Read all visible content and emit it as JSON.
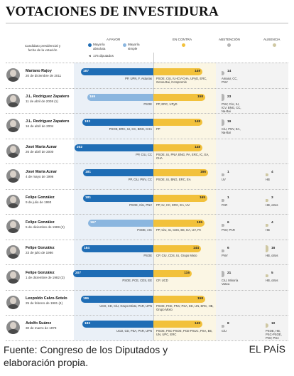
{
  "title": "VOTACIONES DE INVESTIDURA",
  "headers": {
    "candidate": "Candidato presidencial y fecha de la votación",
    "favor": "A FAVOR",
    "contra": "EN CONTRA",
    "abstencion": "ABSTENCIÓN",
    "ausencia": "AUSENCIA"
  },
  "legend": {
    "absolute": "Mayoría absoluta",
    "simple": "Mayoría simple",
    "threshold": "176 diputados"
  },
  "colors": {
    "favor_absolute": "#1f6db5",
    "favor_simple": "#8bb6df",
    "contra": "#f2c13b",
    "abstencion": "#b5b5b5",
    "ausencia": "#cfc8a3"
  },
  "chart_data": {
    "type": "bar",
    "title": "VOTACIONES DE INVESTIDURA",
    "series": [
      {
        "name": "A favor",
        "values": [
          187,
          169,
          183,
          202,
          181,
          181,
          167,
          184,
          207,
          186,
          183
        ]
      },
      {
        "name": "En contra",
        "values": [
          149,
          158,
          148,
          148,
          166,
          165,
          155,
          144,
          116,
          158,
          149
        ]
      },
      {
        "name": "Abstención",
        "values": [
          14,
          23,
          19,
          null,
          1,
          1,
          6,
          6,
          21,
          null,
          8
        ]
      },
      {
        "name": "Ausencia",
        "values": [
          null,
          null,
          null,
          null,
          4,
          3,
          4,
          16,
          5,
          null,
          10
        ]
      }
    ],
    "rows": [
      {
        "name": "Mariano Rajoy",
        "date": "20 de diciembre de 2011",
        "favor": 187,
        "majority": "absoluta",
        "favor_parties": "PP, UPN, F. Asturias",
        "contra": 149,
        "contra_parties": "PSOE, CiU, IU-ICV-CHA, UPyD, ERC, Geroa Bai, Compromís",
        "abst": "14",
        "abst_parties": "Amaiur, CC, PNV",
        "aus": "",
        "aus_parties": ""
      },
      {
        "name": "J.L. Rodríguez Zapatero",
        "date": "11 de abril de 2008 (1)",
        "favor": 169,
        "majority": "simple",
        "favor_parties": "PSOE",
        "contra": 158,
        "contra_parties": "PP, ERC, UPyD",
        "abst": "23",
        "abst_parties": "PNV, CiU, IU, ICV, BNG, CC, Na-Bai",
        "aus": "",
        "aus_parties": ""
      },
      {
        "name": "J.L. Rodríguez Zapatero",
        "date": "16 de abril de 2004",
        "favor": 183,
        "majority": "absoluta",
        "favor_parties": "PSOE, ERC, IU, CC, BNG, CHA",
        "contra": 148,
        "contra_parties": "PP",
        "abst": "19",
        "abst_parties": "CiU, PNV, EA, Na-Bai",
        "aus": "",
        "aus_parties": ""
      },
      {
        "name": "José María Aznar",
        "date": "26 de abril de 2000",
        "favor": 202,
        "majority": "absoluta",
        "favor_parties": "PP, CiU, CC",
        "contra": 148,
        "contra_parties": "PSOE, IU, PNV, BNG, PA, ERC, IC, EA, CHA",
        "abst": "",
        "abst_parties": "",
        "aus": "",
        "aus_parties": ""
      },
      {
        "name": "José María Aznar",
        "date": "4 de mayo de 1996",
        "favor": 181,
        "majority": "absoluta",
        "favor_parties": "PP, CiU, PNV, CC",
        "contra": 166,
        "contra_parties": "PSOE, IU, BNG, ERC, EA",
        "abst": "1",
        "abst_parties": "UV",
        "aus": "4",
        "aus_parties": "HB"
      },
      {
        "name": "Felipe González",
        "date": "9 de julio de 1993",
        "favor": 181,
        "majority": "absoluta",
        "favor_parties": "PSOE, CiU, PNV",
        "contra": 165,
        "contra_parties": "PP, IU, CC, ERC, EA, UV",
        "abst": "1",
        "abst_parties": "PAR",
        "aus": "3",
        "aus_parties": "HB, otros"
      },
      {
        "name": "Felipe González",
        "date": "5 de diciembre de 1989 (2)",
        "favor": 167,
        "majority": "simple",
        "favor_parties": "PSOE, AIC",
        "contra": 155,
        "contra_parties": "PP, CiU, IU, CDS, EE, EA, UV, PA",
        "abst": "6",
        "abst_parties": "PNV, PAR",
        "aus": "4",
        "aus_parties": "HB"
      },
      {
        "name": "Felipe González",
        "date": "23 de julio de 1986",
        "favor": 184,
        "majority": "absoluta",
        "favor_parties": "PSOE",
        "contra": 144,
        "contra_parties": "CP, CiU, CDS, IU, Grupo Mixto",
        "abst": "6",
        "abst_parties": "PNV",
        "aus": "16",
        "aus_parties": "HB, otros"
      },
      {
        "name": "Felipe González",
        "date": "1 de diciembre de 1982 (3)",
        "favor": 207,
        "majority": "absoluta",
        "favor_parties": "PSOE, PCE, CDS, EE",
        "contra": 116,
        "contra_parties": "CP, UCD",
        "abst": "21",
        "abst_parties": "CiU, Minoría Vasca",
        "aus": "5",
        "aus_parties": "HB, otros"
      },
      {
        "name": "Leopoldo Calvo-Sotelo",
        "date": "25 de febrero de 1981 (4)",
        "favor": 186,
        "majority": "absoluta",
        "favor_parties": "UCD, CD, CiU, Grupo Mixto, PAR, UPN",
        "contra": 158,
        "contra_parties": "PSOE, PCE, PNV, PSA, EE, UN, ERC, HB, Grupo Mixto",
        "abst": "",
        "abst_parties": "",
        "aus": "",
        "aus_parties": ""
      },
      {
        "name": "Adolfo Suárez",
        "date": "30 de marzo de 1979",
        "favor": 183,
        "majority": "absoluta",
        "favor_parties": "UCD, CD, PSA, PAR, UPN",
        "contra": 149,
        "contra_parties": "PSOE, PSC-PSOE, PCE-PSUC, PSA, EE, UN, UPC, ERC",
        "abst": "8",
        "abst_parties": "CiU",
        "aus": "10",
        "aus_parties": "PSOE, HB, PSC-PSOE, PNV, PSA"
      }
    ]
  },
  "footer": {
    "source": "Fuente: Congreso de los Diputados y elaboración propia.",
    "brand": "EL PAÍS"
  }
}
